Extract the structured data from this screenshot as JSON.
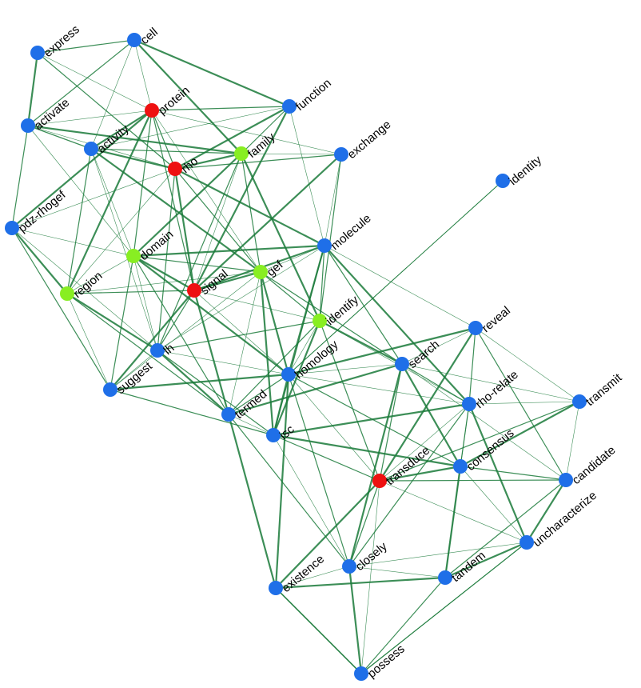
{
  "nodes": [
    {
      "label": "express",
      "color": "#1f6fe8"
    },
    {
      "label": "cell",
      "color": "#1f6fe8"
    },
    {
      "label": "protein",
      "color": "#ee1111"
    },
    {
      "label": "function",
      "color": "#1f6fe8"
    },
    {
      "label": "activate",
      "color": "#1f6fe8"
    },
    {
      "label": "activity",
      "color": "#1f6fe8"
    },
    {
      "label": "rho",
      "color": "#ee1111"
    },
    {
      "label": "family",
      "color": "#88ee22"
    },
    {
      "label": "exchange",
      "color": "#1f6fe8"
    },
    {
      "label": "identity",
      "color": "#1f6fe8"
    },
    {
      "label": "pdz-rhogef",
      "color": "#1f6fe8"
    },
    {
      "label": "domain",
      "color": "#88ee22"
    },
    {
      "label": "molecule",
      "color": "#1f6fe8"
    },
    {
      "label": "gef",
      "color": "#88ee22"
    },
    {
      "label": "region",
      "color": "#88ee22"
    },
    {
      "label": "signal",
      "color": "#ee1111"
    },
    {
      "label": "identify",
      "color": "#88ee22"
    },
    {
      "label": "suggest",
      "color": "#1f6fe8"
    },
    {
      "label": "lh",
      "color": "#1f6fe8"
    },
    {
      "label": "homology",
      "color": "#1f6fe8"
    },
    {
      "label": "search",
      "color": "#1f6fe8"
    },
    {
      "label": "reveal",
      "color": "#1f6fe8"
    },
    {
      "label": "termed",
      "color": "#1f6fe8"
    },
    {
      "label": "rho-relate",
      "color": "#1f6fe8"
    },
    {
      "label": "transmit",
      "color": "#1f6fe8"
    },
    {
      "label": "isc",
      "color": "#1f6fe8"
    },
    {
      "label": "consensus",
      "color": "#1f6fe8"
    },
    {
      "label": "transduce",
      "color": "#ee1111"
    },
    {
      "label": "candidate",
      "color": "#1f6fe8"
    },
    {
      "label": "uncharacterize",
      "color": "#1f6fe8"
    },
    {
      "label": "existence",
      "color": "#1f6fe8"
    },
    {
      "label": "closely",
      "color": "#1f6fe8"
    },
    {
      "label": "tandem",
      "color": "#1f6fe8"
    },
    {
      "label": "possess",
      "color": "#1f6fe8"
    }
  ]
}
